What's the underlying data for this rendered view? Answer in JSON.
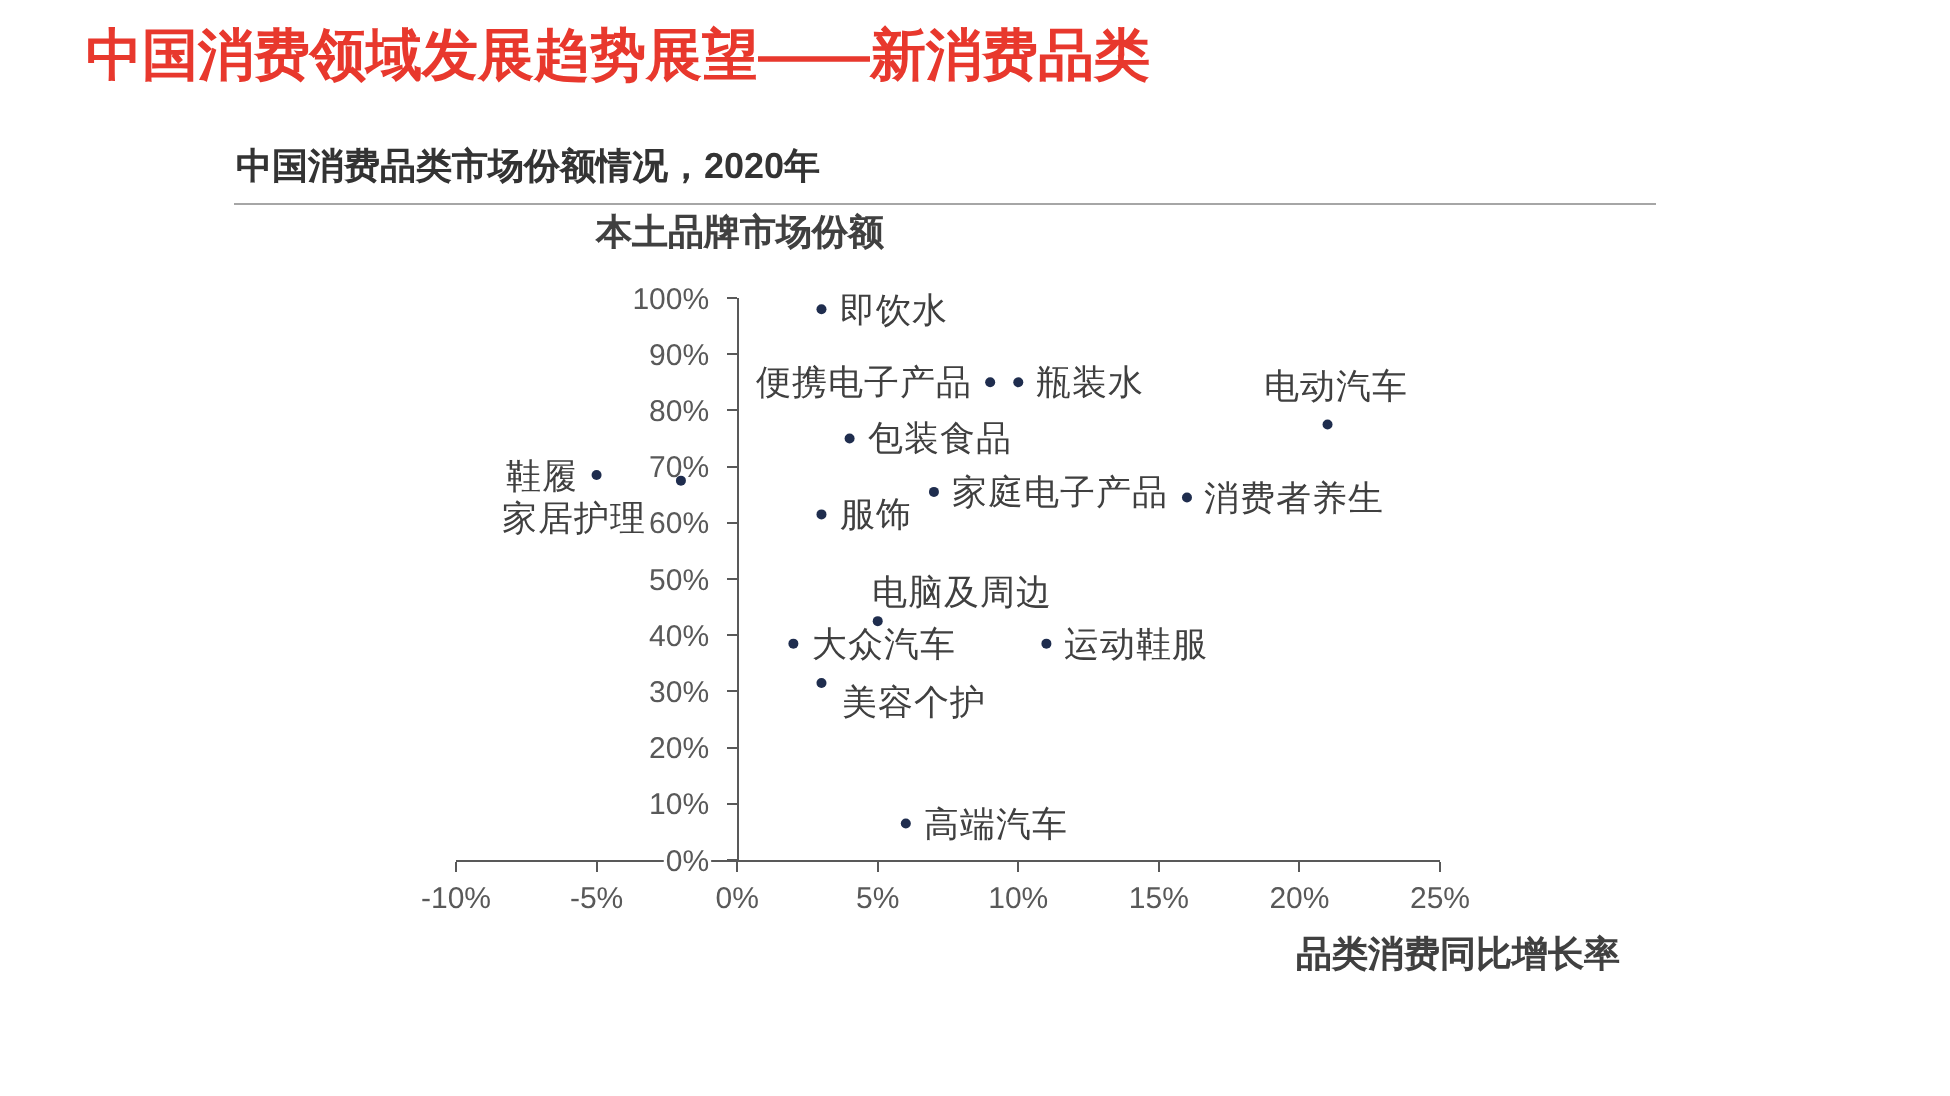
{
  "chart_data": {
    "type": "scatter",
    "title": "中国消费领域发展趋势展望——新消费品类",
    "subtitle": "中国消费品类市场份额情况，2020年",
    "xlabel": "品类消费同比增长率",
    "ylabel": "本土品牌市场份额",
    "xlim": [
      -10,
      25
    ],
    "xticks": [
      {
        "value": -10,
        "label": "-10%"
      },
      {
        "value": -5,
        "label": "-5%"
      },
      {
        "value": 0,
        "label": "0%"
      },
      {
        "value": 5,
        "label": "5%"
      },
      {
        "value": 10,
        "label": "10%"
      },
      {
        "value": 15,
        "label": "15%"
      },
      {
        "value": 20,
        "label": "20%"
      },
      {
        "value": 25,
        "label": "25%"
      }
    ],
    "ylim": [
      0,
      100
    ],
    "yticks": [
      {
        "value": 0,
        "label": "0%"
      },
      {
        "value": 10,
        "label": "10%"
      },
      {
        "value": 20,
        "label": "20%"
      },
      {
        "value": 30,
        "label": "30%"
      },
      {
        "value": 40,
        "label": "40%"
      },
      {
        "value": 50,
        "label": "50%"
      },
      {
        "value": 60,
        "label": "60%"
      },
      {
        "value": 70,
        "label": "70%"
      },
      {
        "value": 80,
        "label": "80%"
      },
      {
        "value": 90,
        "label": "90%"
      },
      {
        "value": 100,
        "label": "100%"
      }
    ],
    "grid": false,
    "legend": false,
    "marker": "circle",
    "series": [
      {
        "name": "即饮水",
        "color": "#1f2d4e",
        "x": [
          3
        ],
        "values": [
          98
        ]
      },
      {
        "name": "便携电子产品",
        "color": "#1f2d4e",
        "x": [
          9
        ],
        "values": [
          85
        ]
      },
      {
        "name": "瓶装水",
        "color": "#1f2d4e",
        "x": [
          10
        ],
        "values": [
          85
        ]
      },
      {
        "name": "电动汽车",
        "color": "#1f2d4e",
        "x": [
          21
        ],
        "values": [
          77.5
        ]
      },
      {
        "name": "包装食品",
        "color": "#1f2d4e",
        "x": [
          4
        ],
        "values": [
          75
        ]
      },
      {
        "name": "鞋履",
        "color": "#1f2d4e",
        "x": [
          -5
        ],
        "values": [
          68.5
        ]
      },
      {
        "name": "家居护理",
        "color": "#1f2d4e",
        "x": [
          -2
        ],
        "values": [
          67.5
        ]
      },
      {
        "name": "家庭电子产品",
        "color": "#1f2d4e",
        "x": [
          7
        ],
        "values": [
          65.5
        ]
      },
      {
        "name": "消费者养生",
        "color": "#1f2d4e",
        "x": [
          16
        ],
        "values": [
          64.5
        ]
      },
      {
        "name": "服饰",
        "color": "#1f2d4e",
        "x": [
          3
        ],
        "values": [
          61.5
        ]
      },
      {
        "name": "电脑及周边",
        "color": "#1f2d4e",
        "x": [
          5
        ],
        "values": [
          42.5
        ]
      },
      {
        "name": "大众汽车",
        "color": "#1f2d4e",
        "x": [
          2
        ],
        "values": [
          38.5
        ]
      },
      {
        "name": "运动鞋服",
        "color": "#1f2d4e",
        "x": [
          11
        ],
        "values": [
          38.5
        ]
      },
      {
        "name": "美容个护",
        "color": "#1f2d4e",
        "x": [
          3
        ],
        "values": [
          31.5
        ]
      },
      {
        "name": "高端汽车",
        "color": "#1f2d4e",
        "x": [
          6
        ],
        "values": [
          6.5
        ]
      }
    ]
  }
}
